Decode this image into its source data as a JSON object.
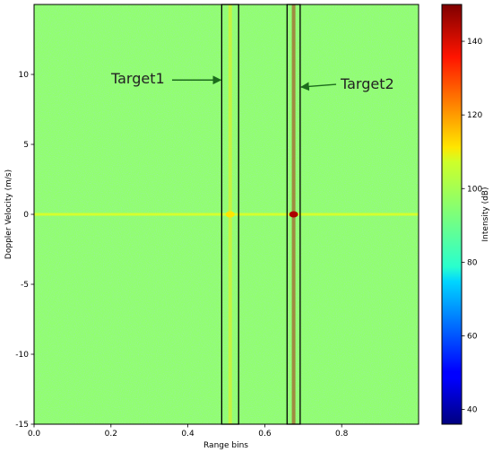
{
  "chart_data": {
    "type": "heatmap",
    "title": "",
    "xlabel": "Range bins",
    "ylabel": "Doppler Velocity (m/s)",
    "xlim": [
      0.0,
      1.0
    ],
    "ylim": [
      -15,
      15
    ],
    "x_ticks": [
      0.0,
      0.2,
      0.4,
      0.6,
      0.8
    ],
    "x_tick_labels": [
      "0.0",
      "0.2",
      "0.4",
      "0.6",
      "0.8"
    ],
    "y_ticks": [
      -15,
      -10,
      -5,
      0,
      5,
      10
    ],
    "y_tick_labels": [
      "-15",
      "-10",
      "-5",
      "0",
      "5",
      "10"
    ],
    "background_intensity_db": 95,
    "colorbar": {
      "label": "Intensity (dB)",
      "colormap": "jet",
      "range": [
        36,
        150
      ],
      "ticks": [
        40,
        60,
        80,
        100,
        120,
        140
      ],
      "tick_labels": [
        "40",
        "60",
        "80",
        "100",
        "120",
        "140"
      ]
    },
    "zero_doppler_line": {
      "velocity": 0,
      "intensity_db": 105
    },
    "highlight_boxes": [
      {
        "x_range": [
          0.488,
          0.532
        ],
        "y_range": [
          -15,
          15
        ]
      },
      {
        "x_range": [
          0.658,
          0.692
        ],
        "y_range": [
          -15,
          15
        ]
      }
    ],
    "targets": [
      {
        "label": "Target1",
        "range_bin": 0.51,
        "velocity": 0,
        "intensity_db": 110
      },
      {
        "label": "Target2",
        "range_bin": 0.675,
        "velocity": 0,
        "intensity_db": 145
      }
    ],
    "annotations": [
      {
        "text": "Target1",
        "points_to": {
          "x": 0.488,
          "y": 9.6
        }
      },
      {
        "text": "Target2",
        "points_to": {
          "x": 0.69,
          "y": 9.1
        }
      }
    ],
    "colors": {
      "box": "#000000",
      "arrow": "#1c6b1c"
    }
  }
}
